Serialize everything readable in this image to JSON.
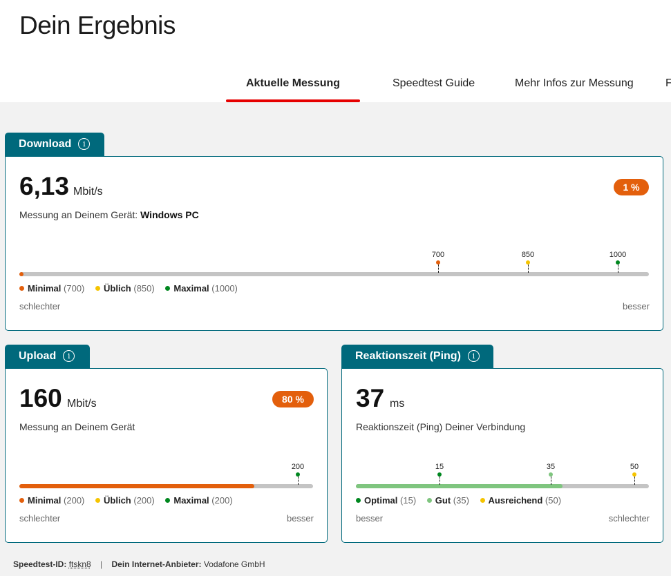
{
  "page": {
    "title": "Dein Ergebnis"
  },
  "tabs": [
    {
      "label": "Aktuelle Messung",
      "active": true
    },
    {
      "label": "Speedtest Guide",
      "active": false
    },
    {
      "label": "Mehr Infos zur Messung",
      "active": false
    },
    {
      "label": "F",
      "active": false
    }
  ],
  "colors": {
    "accent": "#e60000",
    "teal": "#00697c",
    "orange": "#e35f0c",
    "yellow": "#f5c400",
    "green": "#00871f",
    "light_green": "#7fc57f",
    "track": "#c4c4c4"
  },
  "download": {
    "title": "Download",
    "info_icon": "i",
    "value": "6,13",
    "unit": "Mbit/s",
    "description_prefix": "Messung an Deinem Gerät:",
    "device": "Windows PC",
    "badge": "1 %",
    "progress_fraction": 0.0061,
    "scale_max": 1000,
    "markers": [
      {
        "label": "700",
        "value": 700
      },
      {
        "label": "850",
        "value": 850
      },
      {
        "label": "1000",
        "value": 1000
      }
    ],
    "legend": [
      {
        "name": "Minimal",
        "value": "(700)"
      },
      {
        "name": "Üblich",
        "value": "(850)"
      },
      {
        "name": "Maximal",
        "value": "(1000)"
      }
    ],
    "scale_left": "schlechter",
    "scale_right": "besser"
  },
  "upload": {
    "title": "Upload",
    "info_icon": "i",
    "value": "160",
    "unit": "Mbit/s",
    "description": "Messung an Deinem Gerät",
    "badge": "80 %",
    "progress_fraction": 0.8,
    "scale_max": 200,
    "markers": [
      {
        "label": "200",
        "value": 200
      }
    ],
    "legend": [
      {
        "name": "Minimal",
        "value": "(200)"
      },
      {
        "name": "Üblich",
        "value": "(200)"
      },
      {
        "name": "Maximal",
        "value": "(200)"
      }
    ],
    "scale_left": "schlechter",
    "scale_right": "besser"
  },
  "ping": {
    "title": "Reaktionszeit (Ping)",
    "info_icon": "i",
    "value": "37",
    "unit": "ms",
    "description": "Reaktionszeit (Ping) Deiner Verbindung",
    "progress_fraction": 0.705,
    "scale_max": 50,
    "markers": [
      {
        "label": "15",
        "value": 15
      },
      {
        "label": "35",
        "value": 35
      },
      {
        "label": "50",
        "value": 50
      }
    ],
    "legend": [
      {
        "name": "Optimal",
        "value": "(15)"
      },
      {
        "name": "Gut",
        "value": "(35)"
      },
      {
        "name": "Ausreichend",
        "value": "(50)"
      }
    ],
    "scale_left": "besser",
    "scale_right": "schlechter"
  },
  "footer": {
    "speedtest_id_label": "Speedtest-ID:",
    "speedtest_id": "ftskn8",
    "separator": "|",
    "provider_label": "Dein Internet-Anbieter:",
    "provider": "Vodafone GmbH"
  }
}
